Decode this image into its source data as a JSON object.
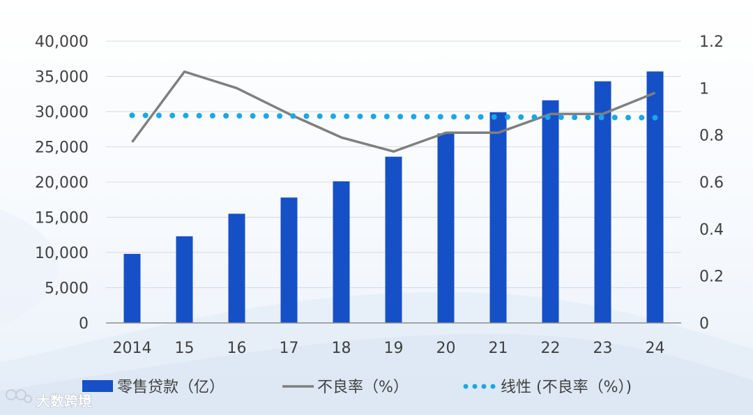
{
  "chart_data": {
    "type": "bar+line",
    "categories": [
      "2014",
      "15",
      "16",
      "17",
      "18",
      "19",
      "20",
      "21",
      "22",
      "23",
      "24"
    ],
    "series": [
      {
        "name": "零售贷款（亿）",
        "kind": "bar",
        "axis": "left",
        "color": "#1650c6",
        "values": [
          9800,
          12300,
          15500,
          17800,
          20100,
          23600,
          26900,
          29900,
          31600,
          34300,
          35700
        ]
      },
      {
        "name": "不良率（%）",
        "kind": "line",
        "axis": "right",
        "color": "#7f7f7f",
        "values": [
          0.77,
          1.07,
          1.0,
          0.89,
          0.79,
          0.73,
          0.81,
          0.81,
          0.89,
          0.89,
          0.98
        ]
      },
      {
        "name": "线性 (不良率（%）)",
        "kind": "trendline",
        "axis": "right",
        "color": "#1aa7e6",
        "values": [
          0.884,
          0.883,
          0.882,
          0.881,
          0.88,
          0.879,
          0.878,
          0.877,
          0.876,
          0.875,
          0.874
        ]
      }
    ],
    "y_left": {
      "ylim": [
        0,
        40000
      ],
      "ticks": [
        "0",
        "5,000",
        "10,000",
        "15,000",
        "20,000",
        "25,000",
        "30,000",
        "35,000",
        "40,000"
      ]
    },
    "y_right": {
      "ylim": [
        0,
        1.2
      ],
      "ticks": [
        "0",
        "0.2",
        "0.4",
        "0.6",
        "0.8",
        "1",
        "1.2"
      ]
    },
    "grid": true,
    "legend_position": "bottom"
  },
  "watermark": {
    "text": "大数跨境",
    "logo": "butterfly-logo-icon"
  }
}
